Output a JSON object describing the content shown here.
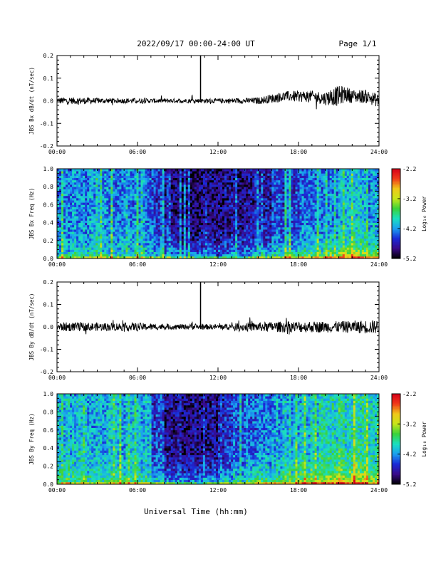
{
  "header": {
    "date_range": "2022/09/17  00:00-24:00 UT",
    "page": "Page 1/1"
  },
  "footer": {
    "xlabel": "Universal Time (hh:mm)"
  },
  "colors": {
    "colormap": [
      "#000000",
      "#3a0a8a",
      "#1a2ad8",
      "#1aa0f0",
      "#1ae0c0",
      "#3ad23a",
      "#c8e61a",
      "#f0c81a",
      "#f03a1a",
      "#d8001a"
    ]
  },
  "chart_data": [
    {
      "type": "line",
      "ylabel": "JBS Bx dB/dt (nT/sec)",
      "xlim": [
        0,
        24
      ],
      "ylim": [
        -0.2,
        0.2
      ],
      "x_ticks": [
        "00:00",
        "06:00",
        "12:00",
        "18:00",
        "24:00"
      ],
      "y_ticks": [
        "0.2",
        "0.1",
        "0.0",
        "-0.1",
        "-0.2"
      ],
      "y_tick_values": [
        0.2,
        0.1,
        0.0,
        -0.1,
        -0.2
      ],
      "series": [
        {
          "x": [
            0,
            1,
            2,
            3,
            4,
            5,
            6,
            7,
            8,
            9,
            10,
            10.7,
            11,
            12,
            13,
            14,
            15,
            16,
            17,
            18,
            19,
            20,
            20.5,
            21,
            21.5,
            22,
            23,
            24
          ],
          "y": [
            0.0,
            0.0,
            0.0,
            0.0,
            0.0,
            0.0,
            0.0,
            0.0,
            0.0,
            0.0,
            0.0,
            0.2,
            0.0,
            0.0,
            0.0,
            0.0,
            0.0,
            0.01,
            0.02,
            0.02,
            0.02,
            0.01,
            0.02,
            0.02,
            0.03,
            0.02,
            0.02,
            0.0
          ],
          "amplitude": [
            0.015,
            0.015,
            0.015,
            0.012,
            0.012,
            0.012,
            0.012,
            0.01,
            0.01,
            0.01,
            0.01,
            0.01,
            0.01,
            0.01,
            0.012,
            0.012,
            0.015,
            0.02,
            0.022,
            0.025,
            0.025,
            0.03,
            0.04,
            0.045,
            0.035,
            0.03,
            0.03,
            0.03
          ]
        }
      ],
      "spike": {
        "x": 10.7,
        "y": 0.2
      }
    },
    {
      "type": "heatmap",
      "ylabel": "JBS Bx Freq (Hz)",
      "colorbar_label": "Log₁₀ Power",
      "xlim": [
        0,
        24
      ],
      "ylim": [
        0,
        1
      ],
      "x_ticks": [
        "00:00",
        "06:00",
        "12:00",
        "18:00",
        "24:00"
      ],
      "y_ticks": [
        "1.0",
        "0.8",
        "0.6",
        "0.4",
        "0.2",
        "0.0"
      ],
      "y_tick_values": [
        1.0,
        0.8,
        0.6,
        0.4,
        0.2,
        0.0
      ],
      "colorbar_ticks": [
        "-2.2",
        "-3.2",
        "-4.2",
        "-5.2"
      ],
      "colorbar_tick_values": [
        -2.2,
        -3.2,
        -4.2,
        -5.2
      ],
      "color_range": [
        -5.2,
        -2.2
      ],
      "hour_profile": [
        -4.3,
        -4.3,
        -4.3,
        -4.3,
        -4.3,
        -4.3,
        -4.3,
        -4.6,
        -4.9,
        -4.95,
        -5.0,
        -4.95,
        -4.9,
        -4.85,
        -4.75,
        -4.7,
        -4.55,
        -4.5,
        -4.45,
        -4.35,
        -4.3,
        -4.2,
        -4.15,
        -4.3
      ],
      "low_freq_boost": [
        -3.8,
        -3.8,
        -3.8,
        -3.8,
        -3.8,
        -3.8,
        -3.8,
        -3.9,
        -4.1,
        -4.2,
        -4.2,
        -4.2,
        -4.1,
        -4.0,
        -3.9,
        -3.8,
        -3.7,
        -3.6,
        -3.5,
        -3.4,
        -3.3,
        -3.1,
        -3.1,
        -3.3
      ]
    },
    {
      "type": "line",
      "ylabel": "JBS By dB/dt (nT/sec)",
      "xlim": [
        0,
        24
      ],
      "ylim": [
        -0.2,
        0.2
      ],
      "x_ticks": [
        "00:00",
        "06:00",
        "12:00",
        "18:00",
        "24:00"
      ],
      "y_ticks": [
        "0.2",
        "0.1",
        "0.0",
        "-0.1",
        "-0.2"
      ],
      "y_tick_values": [
        0.2,
        0.1,
        0.0,
        -0.1,
        -0.2
      ],
      "series": [
        {
          "x": [
            0,
            1,
            2,
            3,
            4,
            5,
            6,
            7,
            8,
            9,
            10,
            10.7,
            11,
            12,
            13,
            14,
            15,
            16,
            17,
            18,
            19,
            20,
            21,
            22,
            23,
            24
          ],
          "y": [
            0.0,
            0.0,
            0.0,
            0.0,
            0.0,
            0.0,
            0.0,
            0.0,
            0.0,
            0.0,
            0.0,
            0.2,
            0.0,
            0.0,
            0.0,
            0.0,
            0.0,
            0.0,
            0.0,
            0.0,
            0.0,
            0.0,
            0.0,
            0.0,
            0.0,
            0.0
          ],
          "amplitude": [
            0.02,
            0.02,
            0.02,
            0.018,
            0.018,
            0.018,
            0.018,
            0.015,
            0.012,
            0.012,
            0.012,
            0.012,
            0.012,
            0.012,
            0.015,
            0.02,
            0.02,
            0.022,
            0.025,
            0.025,
            0.025,
            0.025,
            0.025,
            0.028,
            0.03,
            0.03
          ]
        }
      ],
      "spike": {
        "x": 10.7,
        "y": 0.2
      }
    },
    {
      "type": "heatmap",
      "ylabel": "JBS By Freq (Hz)",
      "colorbar_label": "Log₁₀ Power",
      "xlim": [
        0,
        24
      ],
      "ylim": [
        0,
        1
      ],
      "x_ticks": [
        "00:00",
        "06:00",
        "12:00",
        "18:00",
        "24:00"
      ],
      "y_ticks": [
        "1.0",
        "0.8",
        "0.6",
        "0.4",
        "0.2",
        "0.0"
      ],
      "y_tick_values": [
        1.0,
        0.8,
        0.6,
        0.4,
        0.2,
        0.0
      ],
      "colorbar_ticks": [
        "-2.2",
        "-3.2",
        "-4.2",
        "-5.2"
      ],
      "colorbar_tick_values": [
        -2.2,
        -3.2,
        -4.2,
        -5.2
      ],
      "color_range": [
        -5.2,
        -2.2
      ],
      "hour_profile": [
        -4.1,
        -4.1,
        -4.1,
        -4.1,
        -4.1,
        -4.1,
        -4.1,
        -4.5,
        -4.8,
        -4.85,
        -4.9,
        -4.85,
        -4.7,
        -4.5,
        -4.4,
        -4.35,
        -4.2,
        -4.15,
        -4.1,
        -4.0,
        -4.0,
        -3.9,
        -3.9,
        -4.0
      ],
      "low_freq_boost": [
        -3.6,
        -3.6,
        -3.6,
        -3.6,
        -3.6,
        -3.6,
        -3.6,
        -3.8,
        -4.0,
        -4.1,
        -4.1,
        -4.0,
        -3.9,
        -3.8,
        -3.6,
        -3.5,
        -3.4,
        -3.3,
        -3.2,
        -3.1,
        -3.0,
        -2.9,
        -2.9,
        -3.2
      ]
    }
  ]
}
